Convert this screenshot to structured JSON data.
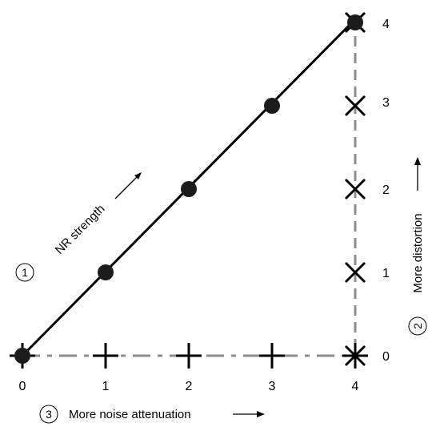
{
  "diagram": {
    "x_ticks": [
      "0",
      "1",
      "2",
      "3",
      "4"
    ],
    "y_ticks": [
      "0",
      "1",
      "2",
      "3",
      "4"
    ],
    "annotations": [
      {
        "number": "1",
        "text": "NR strength"
      },
      {
        "number": "2",
        "text": "More distortion"
      },
      {
        "number": "3",
        "text": "More noise attenuation"
      }
    ],
    "markers": {
      "diagonal": "filled-circle",
      "vertical": "x-cross",
      "horizontal": "plus"
    },
    "points": {
      "diagonal": [
        [
          0,
          0
        ],
        [
          1,
          1
        ],
        [
          2,
          2
        ],
        [
          3,
          3
        ],
        [
          4,
          4
        ]
      ],
      "vertical": [
        [
          4,
          0
        ],
        [
          4,
          1
        ],
        [
          4,
          2
        ],
        [
          4,
          3
        ],
        [
          4,
          4
        ]
      ],
      "horizontal": [
        [
          0,
          0
        ],
        [
          1,
          0
        ],
        [
          2,
          0
        ],
        [
          3,
          0
        ],
        [
          4,
          0
        ]
      ]
    },
    "colors": {
      "ink": "#000000",
      "dot": "#1c1c1c",
      "dash": "#8c8c8c"
    }
  }
}
